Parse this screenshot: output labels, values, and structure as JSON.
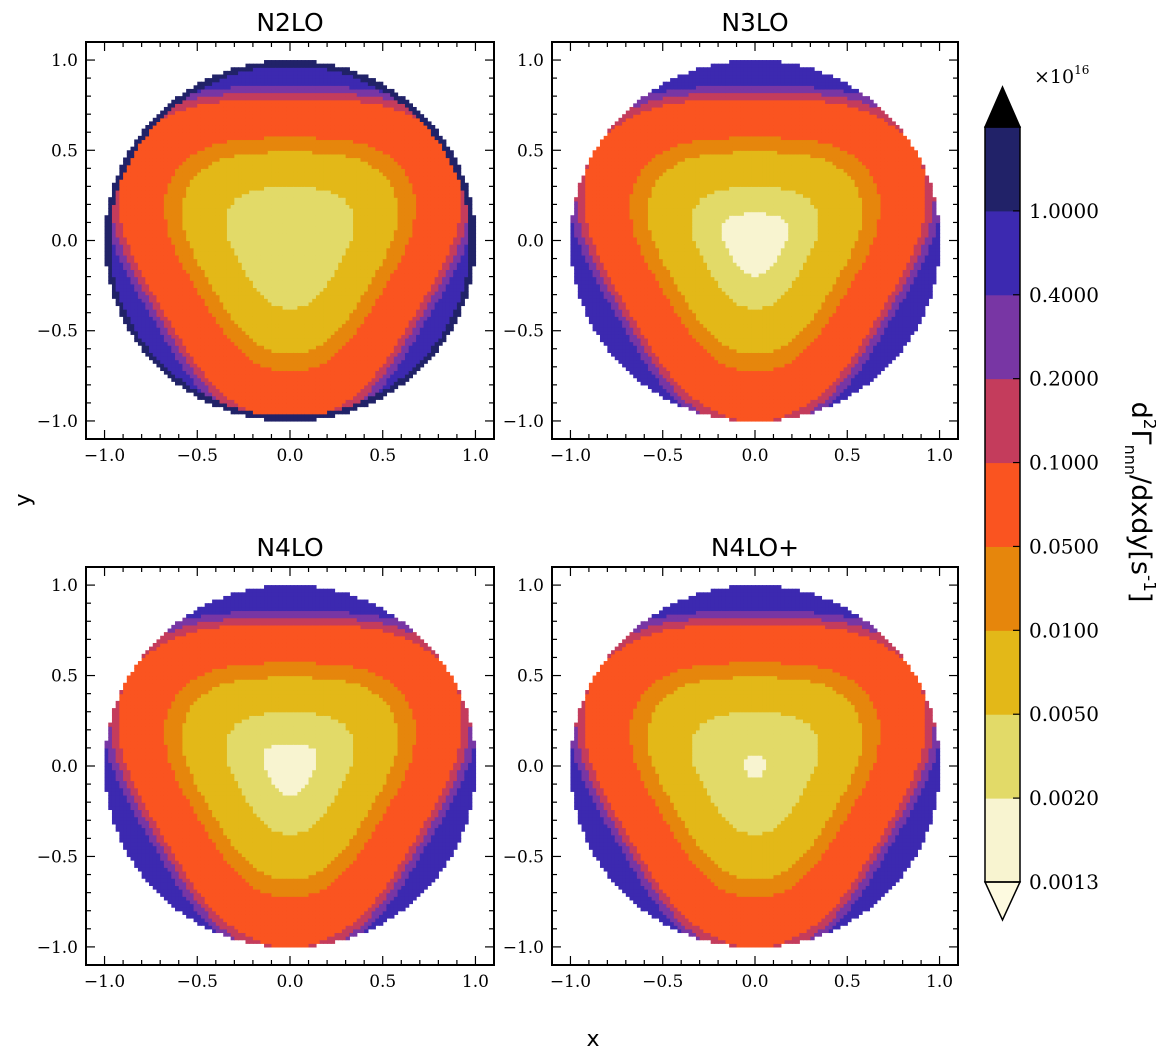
{
  "figure": {
    "xlabel": "x",
    "ylabel": "y",
    "colorbar_label": "d²Γ_nnn/dxdy[s⁻¹]",
    "colorbar_label_parts": {
      "base": "d",
      "sup1": "2",
      "main": "Γ",
      "sub": "nnn",
      "rest": "/dxdy[s",
      "sup2": "-1",
      "end": "]"
    },
    "colorbar_scale": "×10¹⁶",
    "colorbar_scale_parts": {
      "base": "×10",
      "exp": "16"
    }
  },
  "chart_data": {
    "type": "heatmap",
    "panels": [
      {
        "title": "N2LO",
        "center_level": 1,
        "center_size": 0.13,
        "edge_dark": true
      },
      {
        "title": "N3LO",
        "center_level": 0,
        "center_size": 0.17,
        "edge_dark": false
      },
      {
        "title": "N4LO",
        "center_level": 0,
        "center_size": 0.14,
        "edge_dark": false
      },
      {
        "title": "N4LO+",
        "center_level": 0,
        "center_size": 0.06,
        "edge_dark": false
      }
    ],
    "xlim": [
      -1.1,
      1.1
    ],
    "ylim": [
      -1.1,
      1.1
    ],
    "xticks": [
      -1.0,
      -0.5,
      0.0,
      0.5,
      1.0
    ],
    "yticks": [
      -1.0,
      -0.5,
      0.0,
      0.5,
      1.0
    ],
    "tick_labels": [
      "−1.0",
      "−0.5",
      "0.0",
      "0.5",
      "1.0"
    ],
    "colorbar": {
      "levels": [
        0.0013,
        0.002,
        0.005,
        0.01,
        0.05,
        0.1,
        0.2,
        0.4,
        1.0
      ],
      "tick_labels": [
        "0.0013",
        "0.0020",
        "0.0050",
        "0.0100",
        "0.0500",
        "0.1000",
        "0.2000",
        "0.4000",
        "1.0000"
      ],
      "colors": [
        "#f8f4d0",
        "#e2da68",
        "#e3b818",
        "#e6860c",
        "#fa5420",
        "#c43c5c",
        "#7836a4",
        "#3c29b0",
        "#212268"
      ],
      "under_color": "#fdfae0",
      "over_color": "#000000",
      "extend": "both"
    }
  }
}
